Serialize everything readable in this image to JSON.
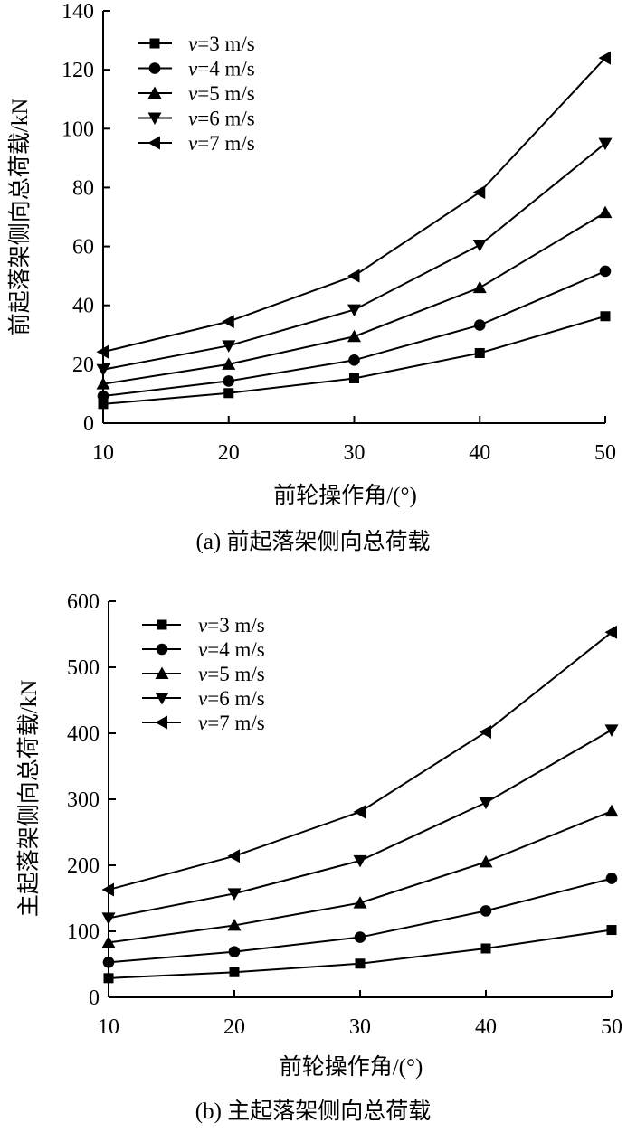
{
  "chart_data": [
    {
      "type": "line",
      "caption": "(a) 前起落架侧向总荷载",
      "xlabel": "前轮操作角/(°)",
      "ylabel": "前起落架侧向总荷载/kN",
      "x": [
        10,
        20,
        30,
        40,
        50
      ],
      "xticks": [
        "10",
        "20",
        "30",
        "40",
        "50"
      ],
      "xlim": [
        10,
        50
      ],
      "ylim": [
        0,
        140
      ],
      "yticks": [
        "0",
        "20",
        "40",
        "60",
        "80",
        "100",
        "120",
        "140"
      ],
      "grid": false,
      "legend": "top-left",
      "series": [
        {
          "name": "v=3 m/s",
          "var": "v",
          "label": "=3 m/s",
          "marker": "square",
          "values": [
            6.5,
            10.2,
            15.2,
            23.8,
            36.3
          ]
        },
        {
          "name": "v=4 m/s",
          "var": "v",
          "label": "=4 m/s",
          "marker": "circle",
          "values": [
            9.2,
            14.3,
            21.4,
            33.3,
            51.6
          ]
        },
        {
          "name": "v=5 m/s",
          "var": "v",
          "label": "=5 m/s",
          "marker": "triangle-up",
          "values": [
            13.3,
            20.0,
            29.4,
            46.0,
            71.5
          ]
        },
        {
          "name": "v=6 m/s",
          "var": "v",
          "label": "=6 m/s",
          "marker": "triangle-down",
          "values": [
            18.2,
            26.3,
            38.5,
            60.5,
            95.0
          ]
        },
        {
          "name": "v=7 m/s",
          "var": "v",
          "label": "=7 m/s",
          "marker": "triangle-left",
          "values": [
            24.2,
            34.5,
            50.0,
            78.4,
            124.0
          ]
        }
      ]
    },
    {
      "type": "line",
      "caption": "(b) 主起落架侧向总荷载",
      "xlabel": "前轮操作角/(°)",
      "ylabel": "主起落架侧向总荷载/kN",
      "x": [
        10,
        20,
        30,
        40,
        50
      ],
      "xticks": [
        "10",
        "20",
        "30",
        "40",
        "50"
      ],
      "xlim": [
        10,
        50
      ],
      "ylim": [
        0,
        600
      ],
      "yticks": [
        "0",
        "100",
        "200",
        "300",
        "400",
        "500",
        "600"
      ],
      "grid": false,
      "legend": "top-left",
      "series": [
        {
          "name": "v=3 m/s",
          "var": "v",
          "label": "=3 m/s",
          "marker": "square",
          "values": [
            29,
            38,
            51,
            74,
            102
          ]
        },
        {
          "name": "v=4 m/s",
          "var": "v",
          "label": "=4 m/s",
          "marker": "circle",
          "values": [
            53,
            69,
            91,
            131,
            180
          ]
        },
        {
          "name": "v=5 m/s",
          "var": "v",
          "label": "=5 m/s",
          "marker": "triangle-up",
          "values": [
            83,
            109,
            143,
            205,
            282
          ]
        },
        {
          "name": "v=6 m/s",
          "var": "v",
          "label": "=6 m/s",
          "marker": "triangle-down",
          "values": [
            120,
            157,
            207,
            295,
            405
          ]
        },
        {
          "name": "v=7 m/s",
          "var": "v",
          "label": "=7 m/s",
          "marker": "triangle-left",
          "values": [
            163,
            214,
            281,
            402,
            553
          ]
        }
      ]
    }
  ]
}
